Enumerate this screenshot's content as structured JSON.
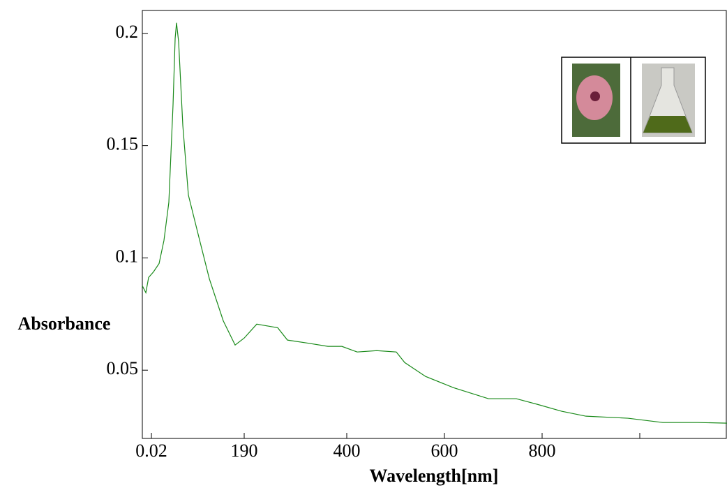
{
  "chart_data": {
    "type": "line",
    "x_label": "Wavelength[nm]",
    "y_label": "Absorbance",
    "x": [
      -18.6,
      -11.4,
      -5.7,
      4.3,
      15.7,
      25.7,
      35.7,
      44.3,
      48.6,
      51.4,
      55.7,
      64.3,
      75.7,
      97.1,
      118.6,
      147.1,
      171.4,
      190,
      215.7,
      240,
      258.6,
      278.6,
      318.6,
      361.4,
      390,
      421.4,
      461.4,
      501.4,
      518.6,
      561.4,
      618.6,
      690,
      747,
      790,
      840,
      890,
      975.7,
      1047,
      1118.6,
      1178.6
    ],
    "series": [
      {
        "name": "Absorbance",
        "color": "#1a8a1a",
        "values": [
          0.0876,
          0.0845,
          0.0913,
          0.0938,
          0.0975,
          0.1078,
          0.1248,
          0.1683,
          0.1978,
          0.2047,
          0.1963,
          0.159,
          0.128,
          0.1093,
          0.0907,
          0.072,
          0.0612,
          0.0643,
          0.0705,
          0.0696,
          0.0689,
          0.0634,
          0.0621,
          0.0606,
          0.0606,
          0.0581,
          0.0587,
          0.0581,
          0.0534,
          0.0472,
          0.0422,
          0.0373,
          0.0373,
          0.0348,
          0.0317,
          0.0295,
          0.0286,
          0.0267,
          0.0267,
          0.0264
        ]
      }
    ],
    "xlim": [
      -18.6,
      1178.6
    ],
    "ylim": [
      0.0196,
      0.2102
    ],
    "xticks": [
      0.02,
      190,
      400,
      600,
      800,
      {
        "value": 1000,
        "label": null
      }
    ],
    "yticks": [
      0.05,
      0.1,
      0.15,
      0.2
    ]
  }
}
